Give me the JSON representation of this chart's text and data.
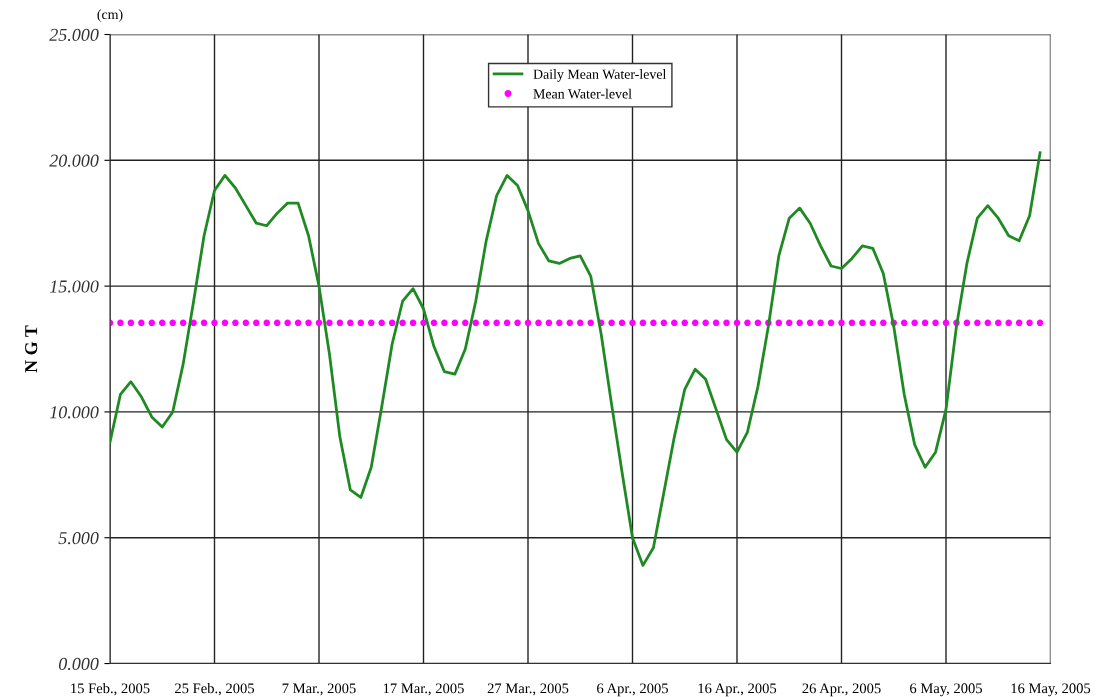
{
  "chart_data": {
    "type": "line",
    "ylabel": "N G T",
    "annotations": [
      "(cm)"
    ],
    "x": [
      "2005-02-15",
      "2005-02-16",
      "2005-02-17",
      "2005-02-18",
      "2005-02-19",
      "2005-02-20",
      "2005-02-21",
      "2005-02-22",
      "2005-02-23",
      "2005-02-24",
      "2005-02-25",
      "2005-02-26",
      "2005-02-27",
      "2005-02-28",
      "2005-03-01",
      "2005-03-02",
      "2005-03-03",
      "2005-03-04",
      "2005-03-05",
      "2005-03-06",
      "2005-03-07",
      "2005-03-08",
      "2005-03-09",
      "2005-03-10",
      "2005-03-11",
      "2005-03-12",
      "2005-03-13",
      "2005-03-14",
      "2005-03-15",
      "2005-03-16",
      "2005-03-17",
      "2005-03-18",
      "2005-03-19",
      "2005-03-20",
      "2005-03-21",
      "2005-03-22",
      "2005-03-23",
      "2005-03-24",
      "2005-03-25",
      "2005-03-26",
      "2005-03-27",
      "2005-03-28",
      "2005-03-29",
      "2005-03-30",
      "2005-03-31",
      "2005-04-01",
      "2005-04-02",
      "2005-04-03",
      "2005-04-04",
      "2005-04-05",
      "2005-04-06",
      "2005-04-07",
      "2005-04-08",
      "2005-04-09",
      "2005-04-10",
      "2005-04-11",
      "2005-04-12",
      "2005-04-13",
      "2005-04-14",
      "2005-04-15",
      "2005-04-16",
      "2005-04-17",
      "2005-04-18",
      "2005-04-19",
      "2005-04-20",
      "2005-04-21",
      "2005-04-22",
      "2005-04-23",
      "2005-04-24",
      "2005-04-25",
      "2005-04-26",
      "2005-04-27",
      "2005-04-28",
      "2005-04-29",
      "2005-04-30",
      "2005-05-01",
      "2005-05-02",
      "2005-05-03",
      "2005-05-04",
      "2005-05-05",
      "2005-05-06",
      "2005-05-07",
      "2005-05-08",
      "2005-05-09",
      "2005-05-10",
      "2005-05-11",
      "2005-05-12",
      "2005-05-13",
      "2005-05-14",
      "2005-05-15"
    ],
    "series": [
      {
        "name": "Daily Mean Water-level",
        "color": "#1f8a24",
        "marker": "none",
        "line_style": "solid",
        "values": [
          8.8,
          10.7,
          11.2,
          10.6,
          9.8,
          9.4,
          10.0,
          11.9,
          14.4,
          17.0,
          18.8,
          19.4,
          18.9,
          18.2,
          17.5,
          17.4,
          17.9,
          18.3,
          18.3,
          17.0,
          15.0,
          12.3,
          9.0,
          6.9,
          6.6,
          7.8,
          10.2,
          12.7,
          14.4,
          14.9,
          14.1,
          12.6,
          11.6,
          11.5,
          12.5,
          14.4,
          16.8,
          18.6,
          19.4,
          19.0,
          18.0,
          16.7,
          16.0,
          15.9,
          16.1,
          16.2,
          15.4,
          13.1,
          10.3,
          7.6,
          5.0,
          3.9,
          4.6,
          6.8,
          9.0,
          10.9,
          11.7,
          11.3,
          10.1,
          8.9,
          8.4,
          9.2,
          11.0,
          13.4,
          16.2,
          17.7,
          18.1,
          17.5,
          16.6,
          15.8,
          15.7,
          16.1,
          16.6,
          16.5,
          15.5,
          13.4,
          10.7,
          8.7,
          7.8,
          8.4,
          10.1,
          13.4,
          15.9,
          17.7,
          18.2,
          17.7,
          17.0,
          16.8,
          17.8,
          20.3
        ]
      },
      {
        "name": "Mean Water-level",
        "type": "scatter",
        "color": "#ff00ff",
        "marker": "circle",
        "values": [
          13.54,
          13.54,
          13.54,
          13.54,
          13.54,
          13.54,
          13.54,
          13.54,
          13.54,
          13.54,
          13.54,
          13.54,
          13.54,
          13.54,
          13.54,
          13.54,
          13.54,
          13.54,
          13.54,
          13.54,
          13.54,
          13.54,
          13.54,
          13.54,
          13.54,
          13.54,
          13.54,
          13.54,
          13.54,
          13.54,
          13.54,
          13.54,
          13.54,
          13.54,
          13.54,
          13.54,
          13.54,
          13.54,
          13.54,
          13.54,
          13.54,
          13.54,
          13.54,
          13.54,
          13.54,
          13.54,
          13.54,
          13.54,
          13.54,
          13.54,
          13.54,
          13.54,
          13.54,
          13.54,
          13.54,
          13.54,
          13.54,
          13.54,
          13.54,
          13.54,
          13.54,
          13.54,
          13.54,
          13.54,
          13.54,
          13.54,
          13.54,
          13.54,
          13.54,
          13.54,
          13.54,
          13.54,
          13.54,
          13.54,
          13.54,
          13.54,
          13.54,
          13.54,
          13.54,
          13.54,
          13.54,
          13.54,
          13.54,
          13.54,
          13.54,
          13.54,
          13.54,
          13.54,
          13.54,
          13.54
        ]
      }
    ],
    "xlim": [
      "2005-02-15",
      "2005-05-16"
    ],
    "xticks": [
      {
        "value": "2005-02-15",
        "label": "15 Feb., 2005"
      },
      {
        "value": "2005-02-25",
        "label": "25 Feb., 2005"
      },
      {
        "value": "2005-03-07",
        "label": "7 Mar., 2005"
      },
      {
        "value": "2005-03-17",
        "label": "17 Mar., 2005"
      },
      {
        "value": "2005-03-27",
        "label": "27 Mar., 2005"
      },
      {
        "value": "2005-04-06",
        "label": "6 Apr., 2005"
      },
      {
        "value": "2005-04-16",
        "label": "16 Apr., 2005"
      },
      {
        "value": "2005-04-26",
        "label": "26 Apr., 2005"
      },
      {
        "value": "2005-05-06",
        "label": "6 May, 2005"
      },
      {
        "value": "2005-05-16",
        "label": "16 May, 2005"
      }
    ],
    "ylim": [
      0,
      25
    ],
    "yticks": [
      {
        "value": 0,
        "label": "0.000"
      },
      {
        "value": 5,
        "label": "5.000"
      },
      {
        "value": 10,
        "label": "10.000"
      },
      {
        "value": 15,
        "label": "15.000"
      },
      {
        "value": 20,
        "label": "20.000"
      },
      {
        "value": 25,
        "label": "25.000"
      }
    ],
    "grid": true,
    "legend": "top"
  }
}
